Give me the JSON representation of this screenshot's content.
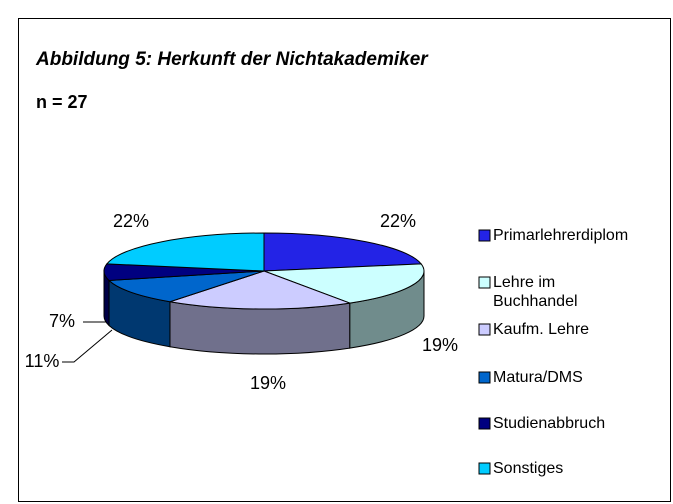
{
  "chart_data": {
    "type": "pie3d",
    "title": "Abbildung 5: Herkunft der Nichtakademiker",
    "subtitle": "n = 27",
    "categories": [
      "Primarlehrerdiplom",
      "Lehre im Buchhandel",
      "Kaufm. Lehre",
      "Matura/DMS",
      "Studienabbruch",
      "Sonstiges"
    ],
    "values": [
      22,
      19,
      19,
      11,
      7,
      22
    ],
    "value_labels": [
      "22%",
      "19%",
      "19%",
      "11%",
      "7%",
      "22%"
    ],
    "colors": [
      "#2323e6",
      "#ccffff",
      "#ccccff",
      "#0066cc",
      "#000080",
      "#00ccff"
    ],
    "legend": "right"
  }
}
